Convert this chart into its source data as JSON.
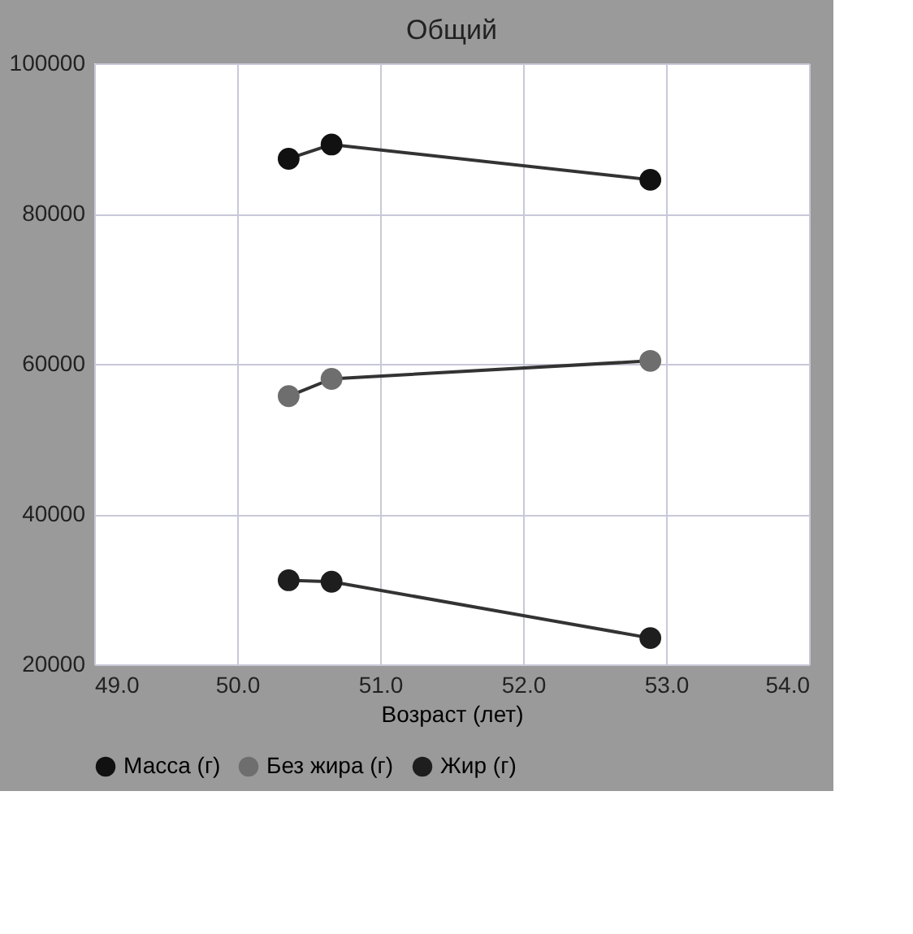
{
  "chart_data": {
    "type": "line",
    "title": "Общий",
    "xlabel": "Возраст (лет)",
    "x": [
      50.36,
      50.66,
      52.89
    ],
    "series": [
      {
        "name": "Масса (г)",
        "color": "#111111",
        "values": [
          87300,
          89200,
          84500
        ]
      },
      {
        "name": "Без жира (г)",
        "color": "#6e6e6e",
        "values": [
          55700,
          58000,
          60400
        ]
      },
      {
        "name": "Жир (г)",
        "color": "#1e1e1e",
        "values": [
          31200,
          31000,
          23500
        ]
      }
    ],
    "xlim": [
      49.0,
      54.0
    ],
    "xticks": [
      {
        "value": 49,
        "label": "49.0"
      },
      {
        "value": 50,
        "label": "50.0"
      },
      {
        "value": 51,
        "label": "51.0"
      },
      {
        "value": 52,
        "label": "52.0"
      },
      {
        "value": 53,
        "label": "53.0"
      },
      {
        "value": 54,
        "label": "54.0"
      }
    ],
    "ylim": [
      20000,
      100000
    ],
    "yticks": [
      20000,
      40000,
      60000,
      80000,
      100000
    ],
    "grid": true,
    "legend": "bottom",
    "marker": "circle",
    "line_style": "solid"
  }
}
